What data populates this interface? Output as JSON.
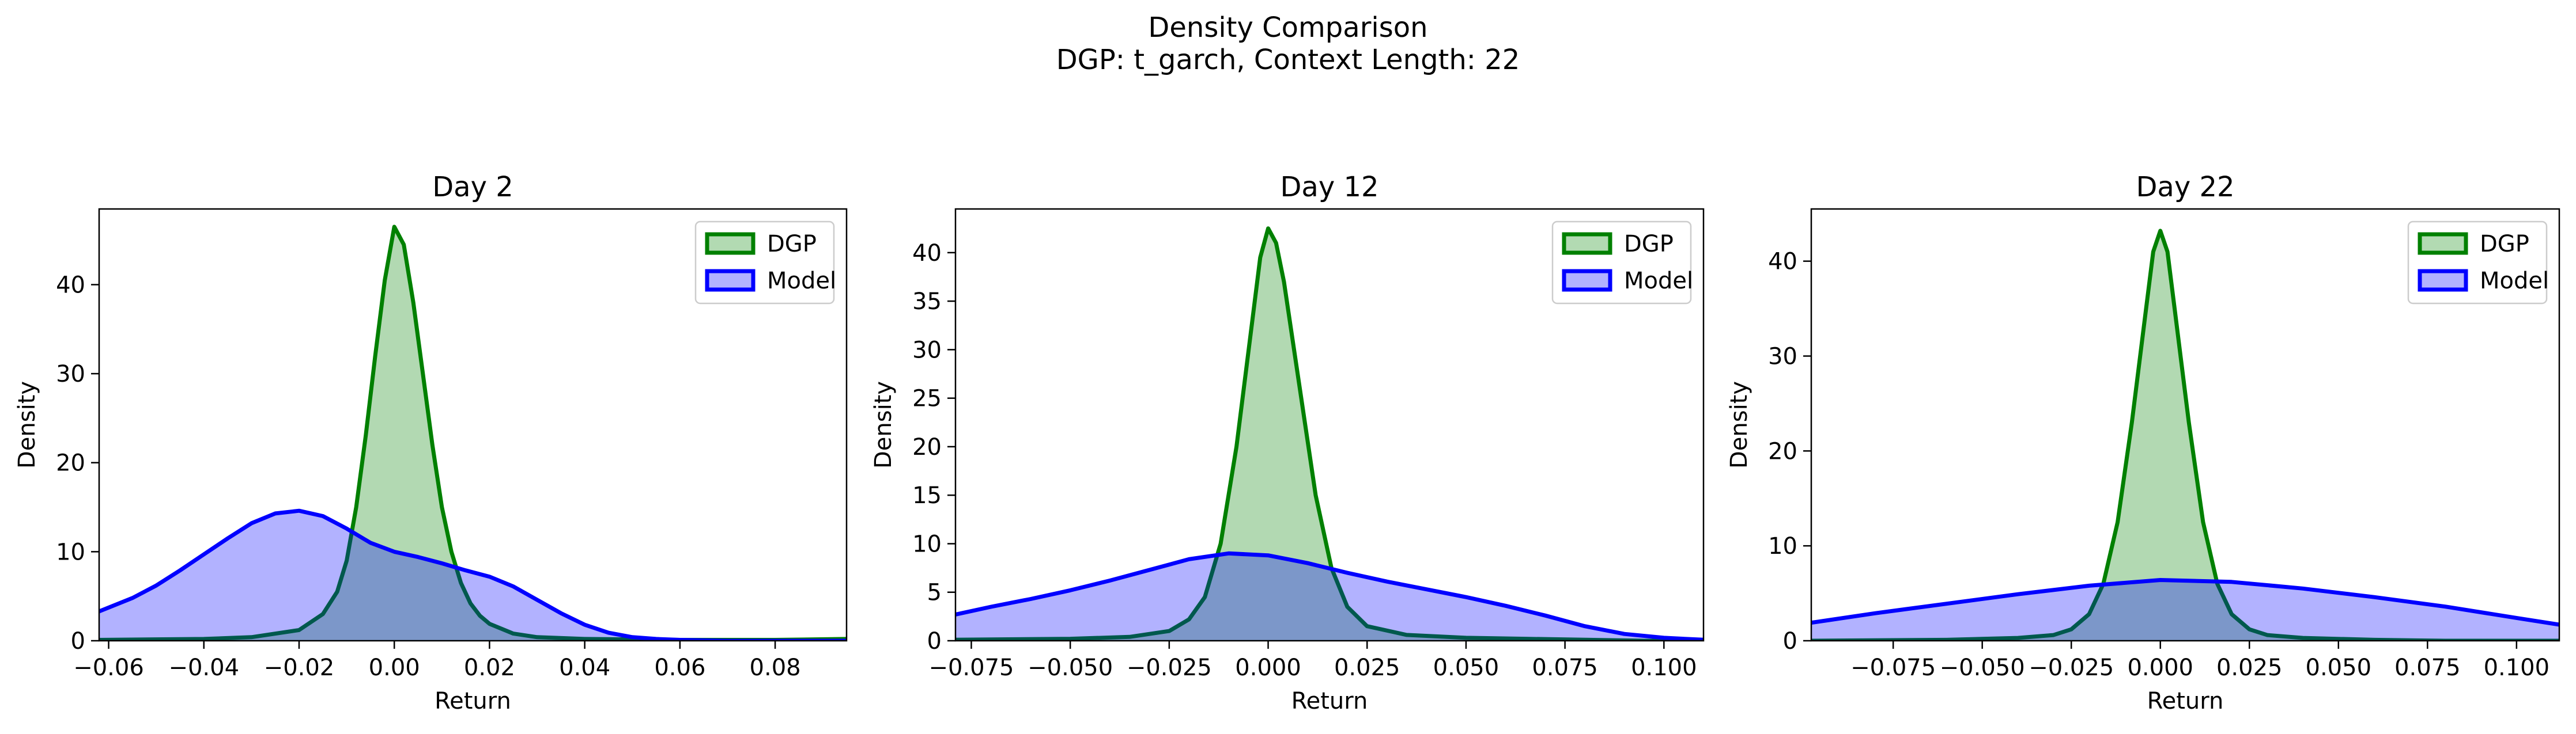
{
  "figure": {
    "title": "Density Comparison",
    "subtitle": "DGP: t_garch, Context Length: 22"
  },
  "colors": {
    "dgp_line": "#008000",
    "dgp_fill": "#b2dab2",
    "model_line": "#0000ff",
    "model_fill": "#b2b2ff",
    "overlap_fill": "#7f9ac6"
  },
  "chart_data": [
    {
      "type": "area",
      "title": "Day 2",
      "xlabel": "Return",
      "ylabel": "Density",
      "xlim": [
        -0.062,
        0.095
      ],
      "ylim": [
        0,
        48.5
      ],
      "xticks": [
        -0.06,
        -0.04,
        -0.02,
        0.0,
        0.02,
        0.04,
        0.06,
        0.08
      ],
      "xtick_labels": [
        "−0.06",
        "−0.04",
        "−0.02",
        "0.00",
        "0.02",
        "0.04",
        "0.06",
        "0.08"
      ],
      "yticks": [
        0,
        10,
        20,
        30,
        40
      ],
      "ytick_labels": [
        "0",
        "10",
        "20",
        "30",
        "40"
      ],
      "grid": false,
      "legend": "top-right",
      "series": [
        {
          "name": "DGP",
          "x": [
            -0.062,
            -0.04,
            -0.03,
            -0.02,
            -0.015,
            -0.012,
            -0.01,
            -0.008,
            -0.006,
            -0.004,
            -0.002,
            0.0,
            0.002,
            0.004,
            0.006,
            0.008,
            0.01,
            0.012,
            0.014,
            0.016,
            0.018,
            0.02,
            0.025,
            0.03,
            0.04,
            0.06,
            0.08,
            0.095
          ],
          "y": [
            0.1,
            0.2,
            0.4,
            1.2,
            3.0,
            5.5,
            9.0,
            15.0,
            23.0,
            32.0,
            40.5,
            46.5,
            44.5,
            38.0,
            30.0,
            22.0,
            15.0,
            10.0,
            6.5,
            4.2,
            2.8,
            1.9,
            0.8,
            0.4,
            0.2,
            0.1,
            0.1,
            0.2
          ]
        },
        {
          "name": "Model",
          "x": [
            -0.062,
            -0.055,
            -0.05,
            -0.045,
            -0.04,
            -0.035,
            -0.03,
            -0.025,
            -0.02,
            -0.015,
            -0.01,
            -0.005,
            0.0,
            0.005,
            0.01,
            0.015,
            0.02,
            0.025,
            0.03,
            0.035,
            0.04,
            0.045,
            0.05,
            0.055,
            0.06,
            0.07,
            0.08,
            0.095
          ],
          "y": [
            3.3,
            4.8,
            6.2,
            7.9,
            9.7,
            11.5,
            13.2,
            14.3,
            14.6,
            14.0,
            12.6,
            11.0,
            10.0,
            9.4,
            8.7,
            7.9,
            7.2,
            6.1,
            4.6,
            3.1,
            1.8,
            0.9,
            0.4,
            0.2,
            0.1,
            0.0,
            0.0,
            0.0
          ]
        }
      ]
    },
    {
      "type": "area",
      "title": "Day 12",
      "xlabel": "Return",
      "ylabel": "Density",
      "xlim": [
        -0.079,
        0.11
      ],
      "ylim": [
        0,
        44.5
      ],
      "xticks": [
        -0.075,
        -0.05,
        -0.025,
        0.0,
        0.025,
        0.05,
        0.075,
        0.1
      ],
      "xtick_labels": [
        "−0.075",
        "−0.050",
        "−0.025",
        "0.000",
        "0.025",
        "0.050",
        "0.075",
        "0.100"
      ],
      "yticks": [
        0,
        5,
        10,
        15,
        20,
        25,
        30,
        35,
        40
      ],
      "ytick_labels": [
        "0",
        "5",
        "10",
        "15",
        "20",
        "25",
        "30",
        "35",
        "40"
      ],
      "grid": false,
      "legend": "top-right",
      "series": [
        {
          "name": "DGP",
          "x": [
            -0.079,
            -0.05,
            -0.035,
            -0.025,
            -0.02,
            -0.016,
            -0.012,
            -0.008,
            -0.004,
            -0.002,
            0.0,
            0.002,
            0.004,
            0.008,
            0.012,
            0.016,
            0.02,
            0.025,
            0.035,
            0.05,
            0.065,
            0.08,
            0.095,
            0.11
          ],
          "y": [
            0.1,
            0.2,
            0.4,
            1.0,
            2.2,
            4.5,
            10.0,
            20.0,
            33.0,
            39.5,
            42.5,
            41.0,
            37.0,
            26.0,
            15.0,
            7.5,
            3.5,
            1.5,
            0.6,
            0.3,
            0.2,
            0.1,
            0.0,
            0.0
          ]
        },
        {
          "name": "Model",
          "x": [
            -0.079,
            -0.07,
            -0.06,
            -0.05,
            -0.04,
            -0.03,
            -0.02,
            -0.01,
            0.0,
            0.01,
            0.02,
            0.03,
            0.04,
            0.05,
            0.06,
            0.07,
            0.08,
            0.09,
            0.1,
            0.11
          ],
          "y": [
            2.7,
            3.5,
            4.3,
            5.2,
            6.2,
            7.3,
            8.4,
            9.0,
            8.8,
            8.0,
            7.0,
            6.1,
            5.3,
            4.5,
            3.6,
            2.6,
            1.5,
            0.7,
            0.3,
            0.1
          ]
        }
      ]
    },
    {
      "type": "area",
      "title": "Day 22",
      "xlabel": "Return",
      "ylabel": "Density",
      "xlim": [
        -0.098,
        0.112
      ],
      "ylim": [
        0,
        45.5
      ],
      "xticks": [
        -0.075,
        -0.05,
        -0.025,
        0.0,
        0.025,
        0.05,
        0.075,
        0.1
      ],
      "xtick_labels": [
        "−0.075",
        "−0.050",
        "−0.025",
        "0.000",
        "0.025",
        "0.050",
        "0.075",
        "0.100"
      ],
      "yticks": [
        0,
        10,
        20,
        30,
        40
      ],
      "ytick_labels": [
        "0",
        "10",
        "20",
        "30",
        "40"
      ],
      "grid": false,
      "legend": "top-right",
      "series": [
        {
          "name": "DGP",
          "x": [
            -0.098,
            -0.06,
            -0.04,
            -0.03,
            -0.025,
            -0.02,
            -0.016,
            -0.012,
            -0.008,
            -0.004,
            -0.002,
            0.0,
            0.002,
            0.004,
            0.008,
            0.012,
            0.016,
            0.02,
            0.025,
            0.03,
            0.04,
            0.06,
            0.08,
            0.112
          ],
          "y": [
            0.0,
            0.1,
            0.3,
            0.6,
            1.2,
            2.8,
            6.0,
            12.5,
            23.0,
            35.0,
            41.0,
            43.2,
            41.0,
            35.0,
            23.0,
            12.5,
            6.0,
            2.8,
            1.2,
            0.6,
            0.3,
            0.1,
            0.0,
            0.0
          ]
        },
        {
          "name": "Model",
          "x": [
            -0.098,
            -0.08,
            -0.06,
            -0.04,
            -0.02,
            0.0,
            0.02,
            0.04,
            0.06,
            0.08,
            0.1,
            0.112
          ],
          "y": [
            1.9,
            2.9,
            3.9,
            4.9,
            5.8,
            6.4,
            6.2,
            5.5,
            4.6,
            3.6,
            2.4,
            1.7
          ]
        }
      ]
    }
  ]
}
